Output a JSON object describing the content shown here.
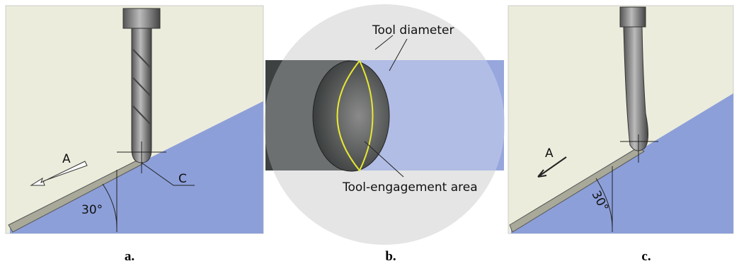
{
  "panels": [
    {
      "caption": "a.",
      "annotations": {
        "direction": "A",
        "contact": "C",
        "angle": "30°"
      }
    },
    {
      "caption": "b.",
      "annotations": {
        "diameter": "Tool diameter",
        "engagement": "Tool-engagement area"
      }
    },
    {
      "caption": "c.",
      "annotations": {
        "direction": "A",
        "angle": "30°"
      }
    }
  ]
}
